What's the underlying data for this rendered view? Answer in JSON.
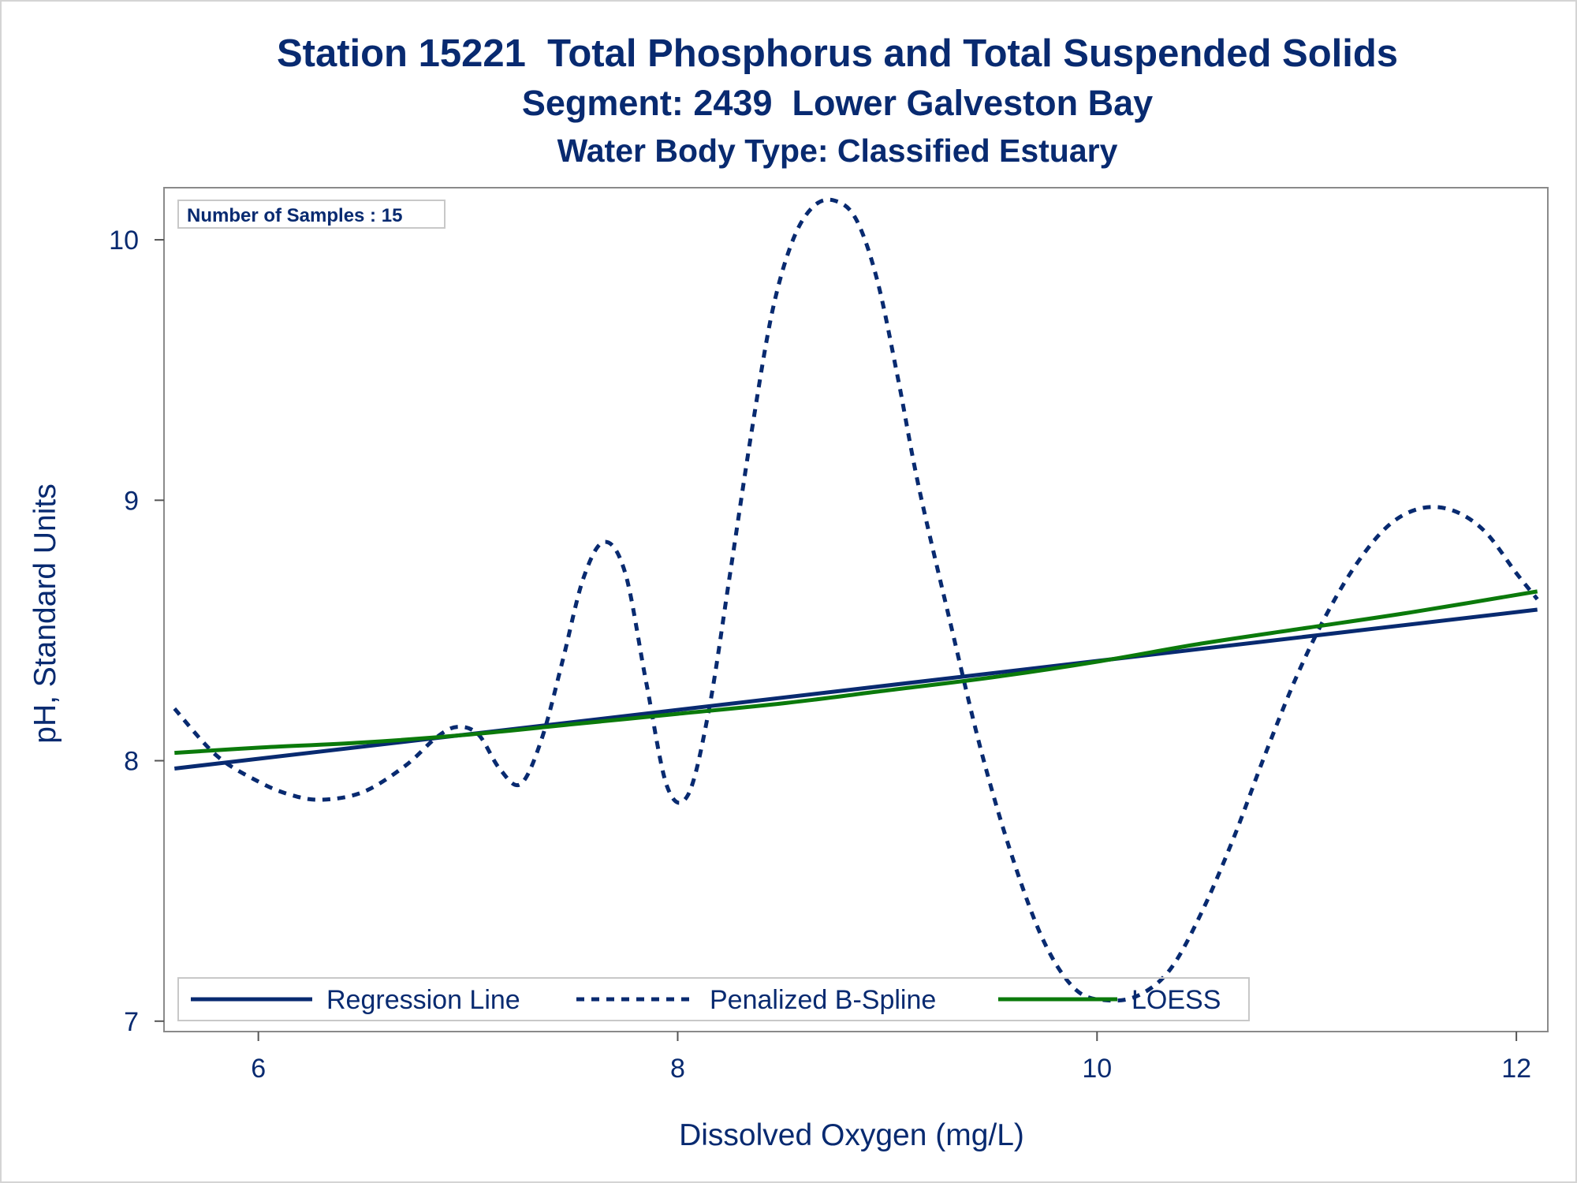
{
  "chart_data": {
    "type": "line",
    "title": "Station 15221  Total Phosphorus and Total Suspended Solids",
    "subtitle": "Segment: 2439  Lower Galveston Bay",
    "subtitle2": "Water Body Type: Classified Estuary",
    "xlabel": "Dissolved Oxygen (mg/L)",
    "ylabel": "pH, Standard Units",
    "xlim": [
      5.55,
      12.15
    ],
    "ylim": [
      6.96,
      10.2
    ],
    "xticks": [
      6,
      8,
      10,
      12
    ],
    "yticks": [
      7,
      8,
      9,
      10
    ],
    "inset_label": "Number of Samples : 15",
    "legend_position": "bottom-inside",
    "grid": false,
    "colors": {
      "navy": "#082a70",
      "green": "#0b7a0b",
      "frame": "#8a8a8a"
    },
    "series": [
      {
        "name": "Regression Line",
        "style": "solid",
        "color": "#082a70",
        "x": [
          5.6,
          12.1
        ],
        "y": [
          7.97,
          8.58
        ]
      },
      {
        "name": "Penalized B-Spline",
        "style": "dashed",
        "color": "#082a70",
        "x": [
          5.6,
          5.8,
          6.0,
          6.15,
          6.3,
          6.5,
          6.7,
          6.85,
          6.95,
          7.05,
          7.15,
          7.25,
          7.35,
          7.45,
          7.55,
          7.65,
          7.75,
          7.85,
          7.95,
          8.05,
          8.15,
          8.25,
          8.35,
          8.45,
          8.55,
          8.65,
          8.75,
          8.85,
          8.95,
          9.05,
          9.15,
          9.3,
          9.45,
          9.6,
          9.75,
          9.9,
          10.05,
          10.2,
          10.35,
          10.5,
          10.65,
          10.8,
          10.95,
          11.1,
          11.25,
          11.4,
          11.55,
          11.7,
          11.85,
          12.0,
          12.1
        ],
        "y": [
          8.2,
          8.02,
          7.92,
          7.87,
          7.85,
          7.88,
          7.98,
          8.09,
          8.13,
          8.1,
          7.97,
          7.91,
          8.08,
          8.38,
          8.7,
          8.84,
          8.72,
          8.3,
          7.9,
          7.87,
          8.2,
          8.72,
          9.25,
          9.72,
          10.0,
          10.13,
          10.15,
          10.08,
          9.85,
          9.47,
          9.05,
          8.53,
          8.03,
          7.62,
          7.3,
          7.12,
          7.08,
          7.1,
          7.2,
          7.42,
          7.7,
          8.02,
          8.32,
          8.57,
          8.77,
          8.91,
          8.97,
          8.96,
          8.88,
          8.72,
          8.62
        ]
      },
      {
        "name": "LOESS",
        "style": "solid",
        "color": "#0b7a0b",
        "x": [
          5.6,
          6.0,
          6.5,
          7.0,
          7.5,
          8.0,
          8.5,
          9.0,
          9.5,
          10.0,
          10.5,
          11.0,
          11.5,
          12.1
        ],
        "y": [
          8.03,
          8.05,
          8.07,
          8.1,
          8.14,
          8.18,
          8.22,
          8.27,
          8.32,
          8.38,
          8.45,
          8.51,
          8.57,
          8.65
        ]
      }
    ]
  }
}
